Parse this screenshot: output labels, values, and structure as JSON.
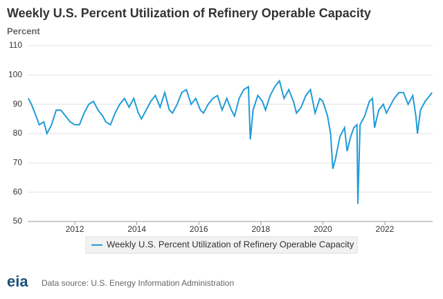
{
  "chart_data": {
    "type": "line",
    "title": "Weekly U.S. Percent Utilization of Refinery Operable Capacity",
    "y_label": "Percent",
    "source": "Data source: U.S. Energy Information Administration",
    "logo": "eia",
    "x": [
      2010.5,
      2010.6,
      2010.75,
      2010.85,
      2011.0,
      2011.1,
      2011.25,
      2011.4,
      2011.55,
      2011.7,
      2011.85,
      2012.0,
      2012.15,
      2012.3,
      2012.45,
      2012.6,
      2012.75,
      2012.9,
      2013.0,
      2013.15,
      2013.3,
      2013.45,
      2013.6,
      2013.75,
      2013.9,
      2014.05,
      2014.15,
      2014.3,
      2014.45,
      2014.6,
      2014.75,
      2014.9,
      2015.05,
      2015.15,
      2015.3,
      2015.45,
      2015.6,
      2015.75,
      2015.9,
      2016.05,
      2016.15,
      2016.3,
      2016.45,
      2016.6,
      2016.75,
      2016.9,
      2017.05,
      2017.15,
      2017.3,
      2017.45,
      2017.6,
      2017.66,
      2017.75,
      2017.9,
      2018.05,
      2018.15,
      2018.3,
      2018.45,
      2018.6,
      2018.75,
      2018.9,
      2019.05,
      2019.15,
      2019.3,
      2019.45,
      2019.6,
      2019.75,
      2019.9,
      2020.0,
      2020.15,
      2020.25,
      2020.32,
      2020.4,
      2020.55,
      2020.7,
      2020.78,
      2020.9,
      2021.0,
      2021.1,
      2021.13,
      2021.2,
      2021.35,
      2021.5,
      2021.6,
      2021.67,
      2021.8,
      2021.95,
      2022.05,
      2022.15,
      2022.3,
      2022.45,
      2022.6,
      2022.75,
      2022.9,
      2023.0,
      2023.05,
      2023.15,
      2023.3,
      2023.45,
      2023.52
    ],
    "series": [
      {
        "name": "Weekly U.S. Percent Utilization of Refinery Operable Capacity",
        "color": "#1f9bd7",
        "values": [
          92,
          90,
          86,
          83,
          84,
          80,
          83,
          88,
          88,
          86,
          84,
          83,
          83,
          87,
          90,
          91,
          88,
          86,
          84,
          83,
          87,
          90,
          92,
          89,
          92,
          87,
          85,
          88,
          91,
          93,
          89,
          94,
          88,
          87,
          90,
          94,
          95,
          90,
          92,
          88,
          87,
          90,
          92,
          93,
          88,
          92,
          88,
          86,
          92,
          95,
          96,
          78,
          88,
          93,
          91,
          88,
          93,
          96,
          98,
          92,
          95,
          91,
          87,
          89,
          93,
          95,
          87,
          92,
          91,
          86,
          80,
          68,
          71,
          79,
          82,
          74,
          79,
          82,
          83,
          56,
          83,
          86,
          91,
          92,
          82,
          88,
          90,
          87,
          89,
          92,
          94,
          94,
          90,
          93,
          86,
          80,
          88,
          91,
          93,
          94
        ]
      }
    ],
    "xlim": [
      2010.48,
      2023.54
    ],
    "xticks": [
      2012,
      2014,
      2016,
      2018,
      2020,
      2022
    ],
    "ylim": [
      50,
      110
    ],
    "yticks": [
      50,
      60,
      70,
      80,
      90,
      100,
      110
    ],
    "grid": true,
    "legend": "bottom"
  }
}
